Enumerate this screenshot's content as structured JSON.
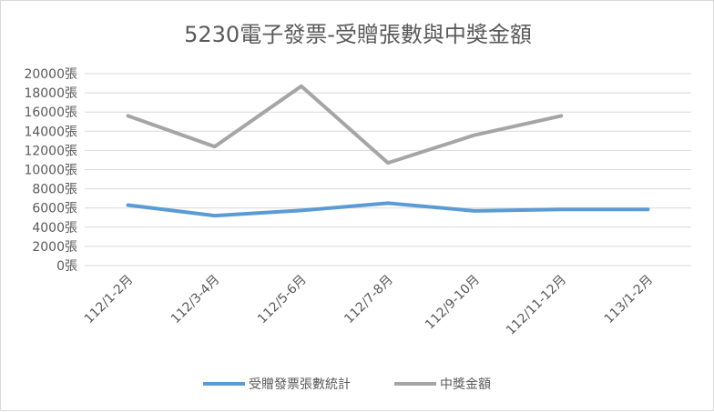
{
  "chart_data": {
    "type": "line",
    "title": "5230電子發票-受贈張數與中獎金額",
    "categories": [
      "112/1-2月",
      "112/3-4月",
      "112/5-6月",
      "112/7-8月",
      "112/9-10月",
      "112/11-12月",
      "113/1-2月"
    ],
    "y_ticks": [
      "0張",
      "2000張",
      "4000張",
      "6000張",
      "8000張",
      "10000張",
      "12000張",
      "14000張",
      "16000張",
      "18000張",
      "20000張"
    ],
    "ylim": [
      0,
      20000
    ],
    "grid": true,
    "legend_position": "bottom",
    "series": [
      {
        "name": "受贈發票張數統計",
        "color": "#5b9bd5",
        "values": [
          6300,
          5200,
          5750,
          6500,
          5700,
          5850,
          5850
        ]
      },
      {
        "name": "中獎金額",
        "color": "#a5a5a5",
        "values": [
          15600,
          12400,
          18700,
          10700,
          13600,
          15600,
          null
        ]
      }
    ]
  }
}
